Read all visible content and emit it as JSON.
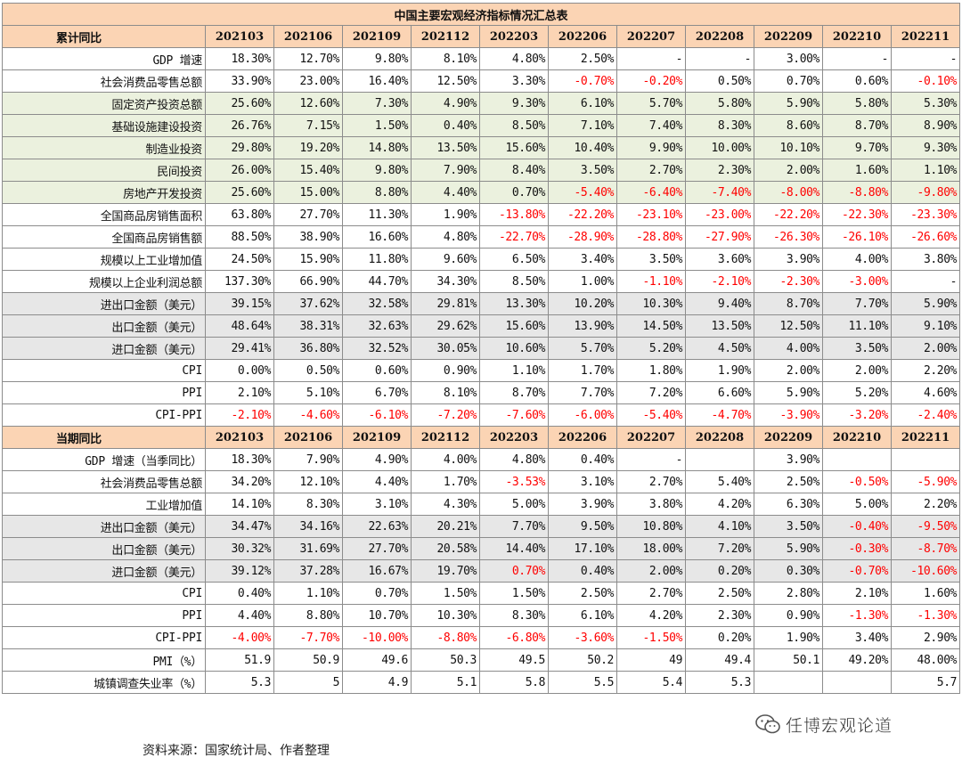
{
  "title": "中国主要宏观经济指标情况汇总表",
  "periods": [
    "202103",
    "202106",
    "202109",
    "202112",
    "202203",
    "202206",
    "202207",
    "202208",
    "202209",
    "202210",
    "202211"
  ],
  "sections": [
    {
      "header": "累计同比",
      "rows": [
        {
          "label": "GDP 增速",
          "bg": "",
          "values": [
            "18.30%",
            "12.70%",
            "9.80%",
            "8.10%",
            "4.80%",
            "2.50%",
            "-",
            "-",
            "3.00%",
            "-",
            "-"
          ]
        },
        {
          "label": "社会消费品零售总额",
          "bg": "",
          "values": [
            "33.90%",
            "23.00%",
            "16.40%",
            "12.50%",
            "3.30%",
            "-0.70%",
            "-0.20%",
            "0.50%",
            "0.70%",
            "0.60%",
            "-0.10%"
          ]
        },
        {
          "label": "固定资产投资总额",
          "bg": "green",
          "values": [
            "25.60%",
            "12.60%",
            "7.30%",
            "4.90%",
            "9.30%",
            "6.10%",
            "5.70%",
            "5.80%",
            "5.90%",
            "5.80%",
            "5.30%"
          ]
        },
        {
          "label": "基础设施建设投资",
          "bg": "green",
          "values": [
            "26.76%",
            "7.15%",
            "1.50%",
            "0.40%",
            "8.50%",
            "7.10%",
            "7.40%",
            "8.30%",
            "8.60%",
            "8.70%",
            "8.90%"
          ]
        },
        {
          "label": "制造业投资",
          "bg": "green",
          "values": [
            "29.80%",
            "19.20%",
            "14.80%",
            "13.50%",
            "15.60%",
            "10.40%",
            "9.90%",
            "10.00%",
            "10.10%",
            "9.70%",
            "9.30%"
          ]
        },
        {
          "label": "民间投资",
          "bg": "green",
          "values": [
            "26.00%",
            "15.40%",
            "9.80%",
            "7.90%",
            "8.40%",
            "3.50%",
            "2.70%",
            "2.30%",
            "2.00%",
            "1.60%",
            "1.10%"
          ]
        },
        {
          "label": "房地产开发投资",
          "bg": "green",
          "values": [
            "25.60%",
            "15.00%",
            "8.80%",
            "4.40%",
            "0.70%",
            "-5.40%",
            "-6.40%",
            "-7.40%",
            "-8.00%",
            "-8.80%",
            "-9.80%"
          ]
        },
        {
          "label": "全国商品房销售面积",
          "bg": "",
          "values": [
            "63.80%",
            "27.70%",
            "11.30%",
            "1.90%",
            "-13.80%",
            "-22.20%",
            "-23.10%",
            "-23.00%",
            "-22.20%",
            "-22.30%",
            "-23.30%"
          ]
        },
        {
          "label": "全国商品房销售额",
          "bg": "",
          "values": [
            "88.50%",
            "38.90%",
            "16.60%",
            "4.80%",
            "-22.70%",
            "-28.90%",
            "-28.80%",
            "-27.90%",
            "-26.30%",
            "-26.10%",
            "-26.60%"
          ]
        },
        {
          "label": "规模以上工业增加值",
          "bg": "",
          "values": [
            "24.50%",
            "15.90%",
            "11.80%",
            "9.60%",
            "6.50%",
            "3.40%",
            "3.50%",
            "3.60%",
            "3.90%",
            "4.00%",
            "3.80%"
          ]
        },
        {
          "label": "规模以上企业利润总额",
          "bg": "",
          "values": [
            "137.30%",
            "66.90%",
            "44.70%",
            "34.30%",
            "8.50%",
            "1.00%",
            "-1.10%",
            "-2.10%",
            "-2.30%",
            "-3.00%",
            "-"
          ]
        },
        {
          "label": "进出口金额（美元）",
          "bg": "gray",
          "values": [
            "39.15%",
            "37.62%",
            "32.58%",
            "29.81%",
            "13.30%",
            "10.20%",
            "10.30%",
            "9.40%",
            "8.70%",
            "7.70%",
            "5.90%"
          ]
        },
        {
          "label": "出口金额（美元）",
          "bg": "gray",
          "values": [
            "48.64%",
            "38.31%",
            "32.63%",
            "29.62%",
            "15.60%",
            "13.90%",
            "14.50%",
            "13.50%",
            "12.50%",
            "11.10%",
            "9.10%"
          ]
        },
        {
          "label": "进口金额（美元）",
          "bg": "gray",
          "values": [
            "29.41%",
            "36.80%",
            "32.52%",
            "30.05%",
            "10.60%",
            "5.70%",
            "5.20%",
            "4.50%",
            "4.00%",
            "3.50%",
            "2.00%"
          ]
        },
        {
          "label": "CPI",
          "bg": "",
          "values": [
            "0.00%",
            "0.50%",
            "0.60%",
            "0.90%",
            "1.10%",
            "1.70%",
            "1.80%",
            "1.90%",
            "2.00%",
            "2.00%",
            "2.20%"
          ]
        },
        {
          "label": "PPI",
          "bg": "",
          "values": [
            "2.10%",
            "5.10%",
            "6.70%",
            "8.10%",
            "8.70%",
            "7.70%",
            "7.20%",
            "6.60%",
            "5.90%",
            "5.20%",
            "4.60%"
          ]
        },
        {
          "label": "CPI-PPI",
          "bg": "",
          "values": [
            "-2.10%",
            "-4.60%",
            "-6.10%",
            "-7.20%",
            "-7.60%",
            "-6.00%",
            "-5.40%",
            "-4.70%",
            "-3.90%",
            "-3.20%",
            "-2.40%"
          ]
        }
      ]
    },
    {
      "header": "当期同比",
      "rows": [
        {
          "label": "GDP 增速（当季同比）",
          "bg": "",
          "values": [
            "18.30%",
            "7.90%",
            "4.90%",
            "4.00%",
            "4.80%",
            "0.40%",
            "-",
            "",
            "3.90%",
            "",
            ""
          ]
        },
        {
          "label": "社会消费品零售总额",
          "bg": "",
          "values": [
            "34.20%",
            "12.10%",
            "4.40%",
            "1.70%",
            "-3.53%",
            "3.10%",
            "2.70%",
            "5.40%",
            "2.50%",
            "-0.50%",
            "-5.90%"
          ]
        },
        {
          "label": "工业增加值",
          "bg": "",
          "values": [
            "14.10%",
            "8.30%",
            "3.10%",
            "4.30%",
            "5.00%",
            "3.90%",
            "3.80%",
            "4.20%",
            "6.30%",
            "5.00%",
            "2.20%"
          ]
        },
        {
          "label": "进出口金额（美元）",
          "bg": "gray",
          "values": [
            "34.47%",
            "34.16%",
            "22.63%",
            "20.21%",
            "7.70%",
            "9.50%",
            "10.80%",
            "4.10%",
            "3.50%",
            "-0.40%",
            "-9.50%"
          ]
        },
        {
          "label": "出口金额（美元）",
          "bg": "gray",
          "values": [
            "30.32%",
            "31.69%",
            "27.70%",
            "20.58%",
            "14.40%",
            "17.10%",
            "18.00%",
            "7.20%",
            "5.90%",
            "-0.30%",
            "-8.70%"
          ]
        },
        {
          "label": "进口金额（美元）",
          "bg": "gray",
          "values": [
            "39.12%",
            "37.28%",
            "16.67%",
            "19.70%",
            "0.70%",
            "0.40%",
            "2.00%",
            "0.20%",
            "0.30%",
            "-0.70%",
            "-10.60%"
          ]
        },
        {
          "label": "CPI",
          "bg": "",
          "values": [
            "0.40%",
            "1.10%",
            "0.70%",
            "1.50%",
            "1.50%",
            "2.50%",
            "2.70%",
            "2.50%",
            "2.80%",
            "2.10%",
            "1.60%"
          ]
        },
        {
          "label": "PPI",
          "bg": "",
          "values": [
            "4.40%",
            "8.80%",
            "10.70%",
            "10.30%",
            "8.30%",
            "6.10%",
            "4.20%",
            "2.30%",
            "0.90%",
            "-1.30%",
            "-1.30%"
          ]
        },
        {
          "label": "CPI-PPI",
          "bg": "",
          "values": [
            "-4.00%",
            "-7.70%",
            "-10.00%",
            "-8.80%",
            "-6.80%",
            "-3.60%",
            "-1.50%",
            "0.20%",
            "1.90%",
            "3.40%",
            "2.90%"
          ]
        },
        {
          "label": "PMI（%）",
          "bg": "",
          "values": [
            "51.9",
            "50.9",
            "49.6",
            "50.3",
            "49.5",
            "50.2",
            "49",
            "49.4",
            "50.1",
            "49.20%",
            "48.00%"
          ]
        },
        {
          "label": "城镇调查失业率（%）",
          "bg": "",
          "values": [
            "5.3",
            "5",
            "4.9",
            "5.1",
            "5.8",
            "5.5",
            "5.4",
            "5.3",
            "",
            "",
            "5.7"
          ]
        }
      ]
    }
  ],
  "red_values": {
    "0.70%": false
  },
  "special_red": [
    [
      1,
      5,
      4
    ]
  ],
  "source": "资料来源：国家统计局、作者整理",
  "watermark": "任博宏观论道",
  "colors": {
    "header_bg": "#fbd4b4",
    "green_bg": "#ebf1de",
    "gray_bg": "#e7e7e7",
    "negative": "#ff0000"
  }
}
